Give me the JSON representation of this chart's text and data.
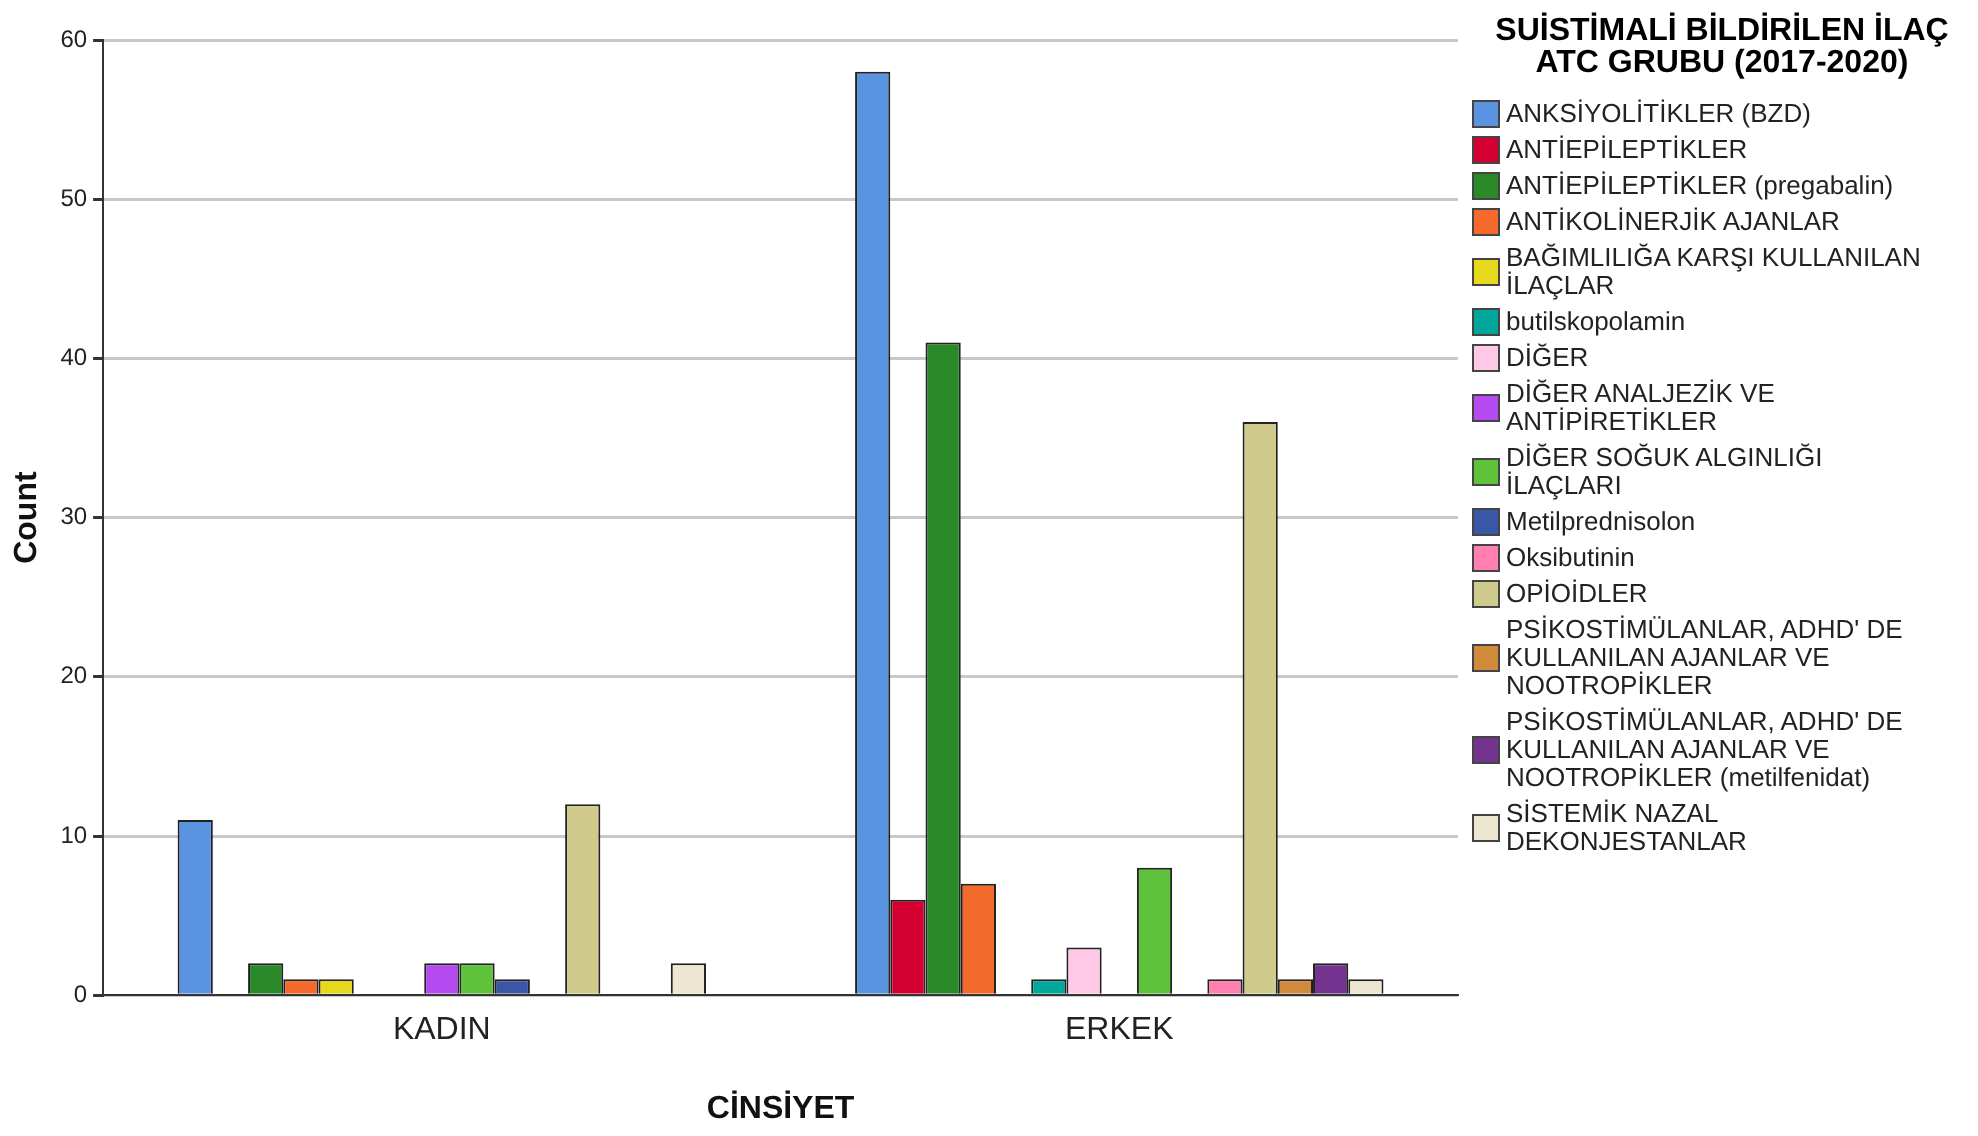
{
  "chart_data": {
    "type": "bar",
    "xlabel": "CİNSİYET",
    "ylabel": "Count",
    "legend_title": "SUİSTİMALİ BİLDİRİLEN İLAÇ ATC GRUBU (2017-2020)",
    "categories": [
      "KADIN",
      "ERKEK"
    ],
    "ylim": [
      0,
      60
    ],
    "yticks": [
      0,
      10,
      20,
      30,
      40,
      50,
      60
    ],
    "grid": "y",
    "legend": "right",
    "series": [
      {
        "name": "ANKSİYOLİTİKLER (BZD)",
        "color": "#5a93e0",
        "values": [
          11,
          58
        ]
      },
      {
        "name": "ANTİEPİLEPTİKLER",
        "color": "#d50032",
        "values": [
          null,
          6
        ]
      },
      {
        "name": "ANTİEPİLEPTİKLER (pregabalin)",
        "color": "#2a8a2a",
        "values": [
          2,
          41
        ]
      },
      {
        "name": "ANTİKOLİNERJİK AJANLAR",
        "color": "#f46a2a",
        "values": [
          1,
          7
        ]
      },
      {
        "name": "BAĞIMLILIĞA KARŞI KULLANILAN İLAÇLAR",
        "color": "#e6d81a",
        "values": [
          1,
          null
        ]
      },
      {
        "name": "butilskopolamin",
        "color": "#00a79a",
        "values": [
          null,
          1
        ]
      },
      {
        "name": "DİĞER",
        "color": "#ffc8e6",
        "values": [
          null,
          3
        ]
      },
      {
        "name": "DİĞER ANALJEZİK VE ANTİPİRETİKLER",
        "color": "#b44af0",
        "values": [
          2,
          null
        ]
      },
      {
        "name": "DİĞER SOĞUK ALGINLIĞI İLAÇLARI",
        "color": "#5ec23a",
        "values": [
          2,
          8
        ]
      },
      {
        "name": "Metilprednisolon",
        "color": "#3a56a6",
        "values": [
          1,
          null
        ]
      },
      {
        "name": "Oksibutinin",
        "color": "#ff7fb0",
        "values": [
          null,
          1
        ]
      },
      {
        "name": "OPİOİDLER",
        "color": "#d0cb8c",
        "values": [
          12,
          36
        ]
      },
      {
        "name": "PSİKOSTİMÜLANLAR, ADHD' DE KULLANILAN AJANLAR VE NOOTROPİKLER",
        "color": "#d08a3c",
        "values": [
          null,
          1
        ]
      },
      {
        "name": "PSİKOSTİMÜLANLAR, ADHD' DE KULLANILAN AJANLAR VE NOOTROPİKLER (metilfenidat)",
        "color": "#74338e",
        "values": [
          null,
          2
        ]
      },
      {
        "name": "SİSTEMİK NAZAL DEKONJESTANLAR",
        "color": "#ede6d0",
        "values": [
          2,
          1
        ]
      }
    ]
  }
}
